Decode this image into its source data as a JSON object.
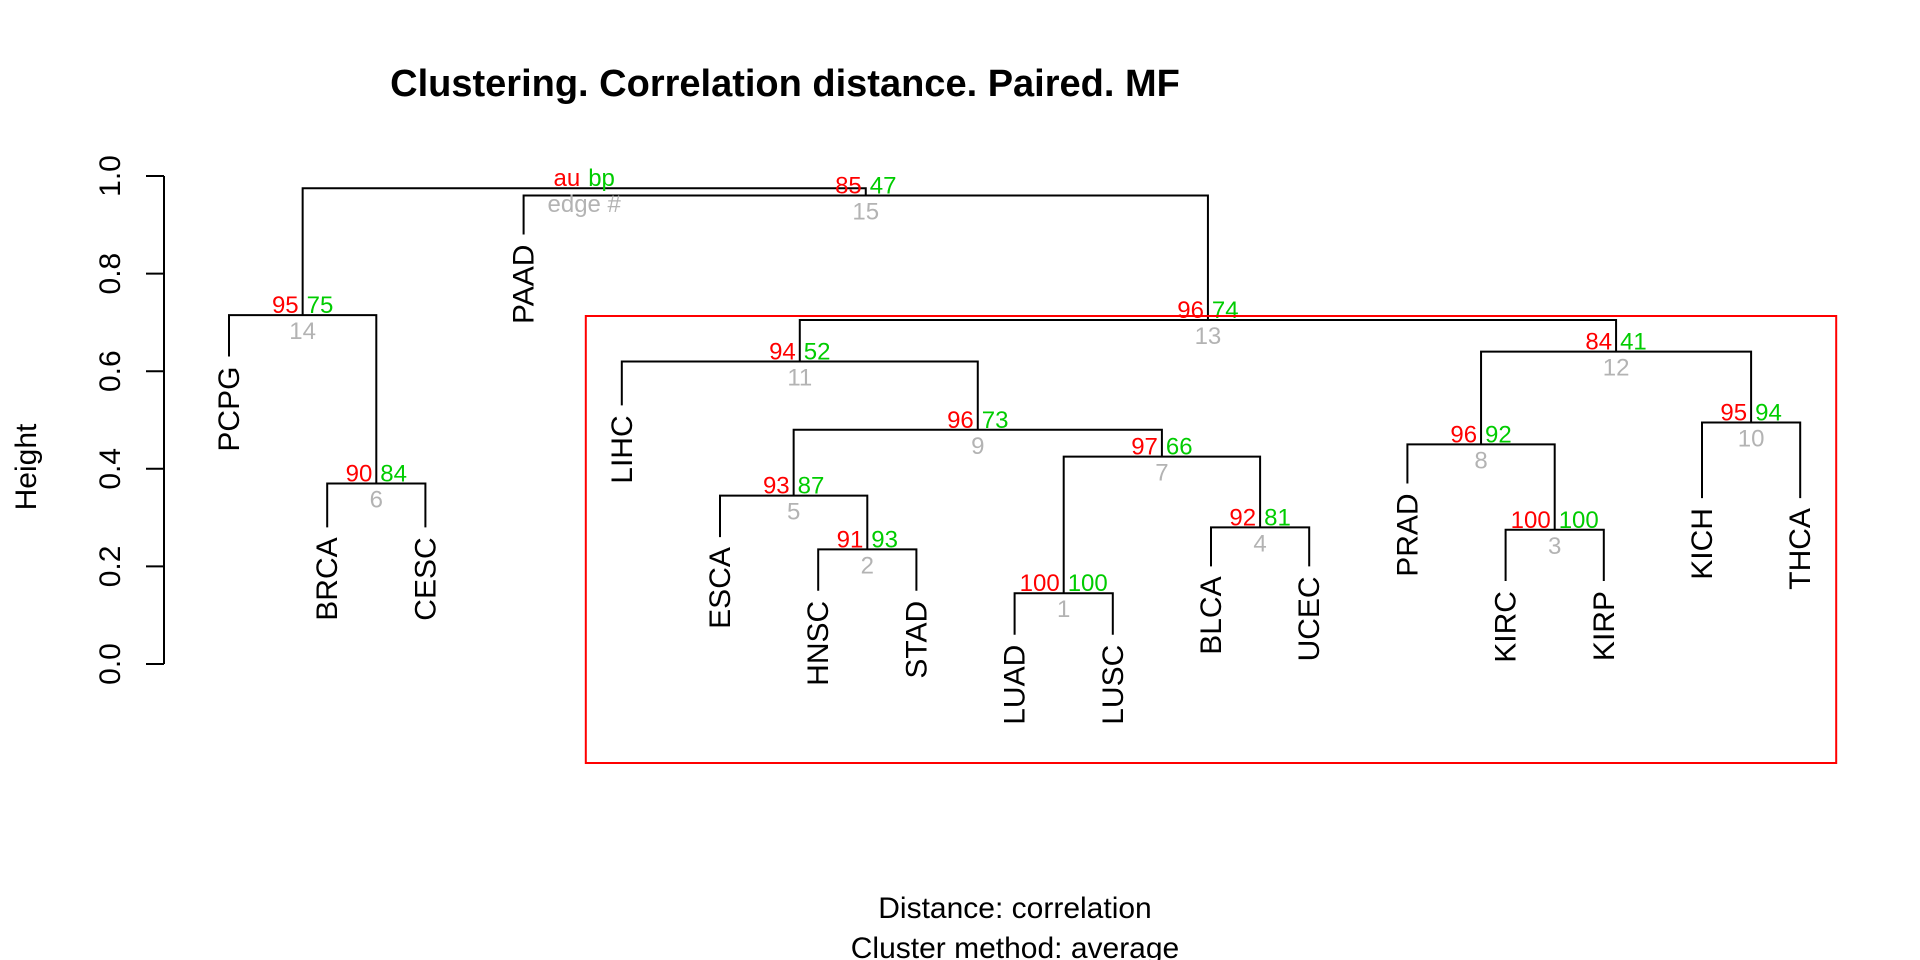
{
  "title": "Clustering. Correlation distance. Paired. MF",
  "ylabel": "Height",
  "subtitle_lines": [
    "Distance:  correlation",
    "Cluster method: average"
  ],
  "y_ticks": [
    "0.0",
    "0.2",
    "0.4",
    "0.6",
    "0.8",
    "1.0"
  ],
  "legend": {
    "au": "au",
    "bp": "bp",
    "edge": "edge #"
  },
  "colors": {
    "au": "#ff0000",
    "bp": "#00cc00",
    "edge": "#b3b3b3",
    "box": "#ff0000",
    "line": "#000000"
  },
  "leaves": [
    "PCPG",
    "BRCA",
    "CESC",
    "PAAD",
    "LIHC",
    "ESCA",
    "HNSC",
    "STAD",
    "LUAD",
    "LUSC",
    "BLCA",
    "UCEC",
    "PRAD",
    "KIRC",
    "KIRP",
    "KICH",
    "THCA"
  ],
  "leaf_heights": {
    "PCPG": 0.63,
    "BRCA": 0.28,
    "CESC": 0.28,
    "PAAD": 0.88,
    "LIHC": 0.53,
    "ESCA": 0.26,
    "HNSC": 0.15,
    "STAD": 0.15,
    "LUAD": 0.06,
    "LUSC": 0.06,
    "BLCA": 0.2,
    "UCEC": 0.2,
    "PRAD": 0.37,
    "KIRC": 0.17,
    "KIRP": 0.17,
    "KICH": 0.34,
    "THCA": 0.34
  },
  "merges": [
    {
      "edge": "1",
      "height": 0.145,
      "left": "LUAD",
      "right": "LUSC",
      "au": "100",
      "bp": "100"
    },
    {
      "edge": "2",
      "height": 0.235,
      "left": "HNSC",
      "right": "STAD",
      "au": "91",
      "bp": "93"
    },
    {
      "edge": "3",
      "height": 0.275,
      "left": "KIRC",
      "right": "KIRP",
      "au": "100",
      "bp": "100"
    },
    {
      "edge": "4",
      "height": 0.28,
      "left": "BLCA",
      "right": "UCEC",
      "au": "92",
      "bp": "81"
    },
    {
      "edge": "5",
      "height": 0.345,
      "left": "ESCA",
      "right": "2",
      "au": "93",
      "bp": "87"
    },
    {
      "edge": "6",
      "height": 0.37,
      "left": "BRCA",
      "right": "CESC",
      "au": "90",
      "bp": "84"
    },
    {
      "edge": "7",
      "height": 0.425,
      "left": "1",
      "right": "4",
      "au": "97",
      "bp": "66"
    },
    {
      "edge": "8",
      "height": 0.45,
      "left": "PRAD",
      "right": "3",
      "au": "96",
      "bp": "92"
    },
    {
      "edge": "9",
      "height": 0.48,
      "left": "5",
      "right": "7",
      "au": "96",
      "bp": "73"
    },
    {
      "edge": "10",
      "height": 0.495,
      "left": "KICH",
      "right": "THCA",
      "au": "95",
      "bp": "94"
    },
    {
      "edge": "11",
      "height": 0.62,
      "left": "LIHC",
      "right": "9",
      "au": "94",
      "bp": "52"
    },
    {
      "edge": "12",
      "height": 0.64,
      "left": "8",
      "right": "10",
      "au": "84",
      "bp": "41"
    },
    {
      "edge": "13",
      "height": 0.705,
      "left": "11",
      "right": "12",
      "au": "96",
      "bp": "74"
    },
    {
      "edge": "14",
      "height": 0.715,
      "left": "PCPG",
      "right": "6",
      "au": "95",
      "bp": "75"
    },
    {
      "edge": "15",
      "height": 0.96,
      "left": "PAAD",
      "right": "13",
      "au": "85",
      "bp": "47"
    },
    {
      "edge": "16",
      "height": 0.975,
      "left": "14",
      "right": "15",
      "au": "au",
      "bp": "bp"
    }
  ],
  "highlight_box": {
    "from_leaf": "LIHC",
    "to_leaf": "THCA"
  }
}
